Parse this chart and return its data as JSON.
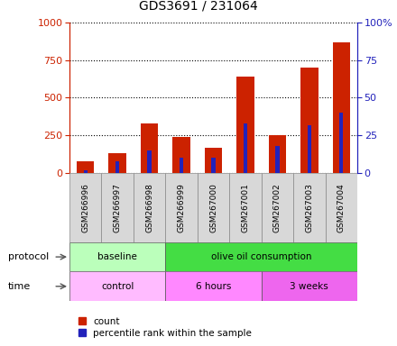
{
  "title": "GDS3691 / 231064",
  "samples": [
    "GSM266996",
    "GSM266997",
    "GSM266998",
    "GSM266999",
    "GSM267000",
    "GSM267001",
    "GSM267002",
    "GSM267003",
    "GSM267004"
  ],
  "count_values": [
    80,
    130,
    330,
    240,
    165,
    640,
    250,
    700,
    870
  ],
  "percentile_values": [
    20,
    80,
    150,
    100,
    100,
    330,
    180,
    320,
    400
  ],
  "left_ylim": [
    0,
    1000
  ],
  "right_ylim": [
    0,
    100
  ],
  "left_yticks": [
    0,
    250,
    500,
    750,
    1000
  ],
  "right_yticks": [
    0,
    25,
    50,
    75,
    100
  ],
  "right_yticklabels": [
    "0",
    "25",
    "50",
    "75",
    "100%"
  ],
  "bar_color": "#cc2200",
  "percentile_color": "#2222bb",
  "protocol_groups": [
    {
      "label": "baseline",
      "start": 0,
      "end": 3,
      "color": "#bbffbb"
    },
    {
      "label": "olive oil consumption",
      "start": 3,
      "end": 9,
      "color": "#44dd44"
    }
  ],
  "time_groups": [
    {
      "label": "control",
      "start": 0,
      "end": 3,
      "color": "#ffbbff"
    },
    {
      "label": "6 hours",
      "start": 3,
      "end": 6,
      "color": "#ff88ff"
    },
    {
      "label": "3 weeks",
      "start": 6,
      "end": 9,
      "color": "#ee66ee"
    }
  ],
  "legend_count_label": "count",
  "legend_percentile_label": "percentile rank within the sample",
  "left_axis_color": "#cc2200",
  "right_axis_color": "#2222bb",
  "protocol_row_label": "protocol",
  "time_row_label": "time"
}
